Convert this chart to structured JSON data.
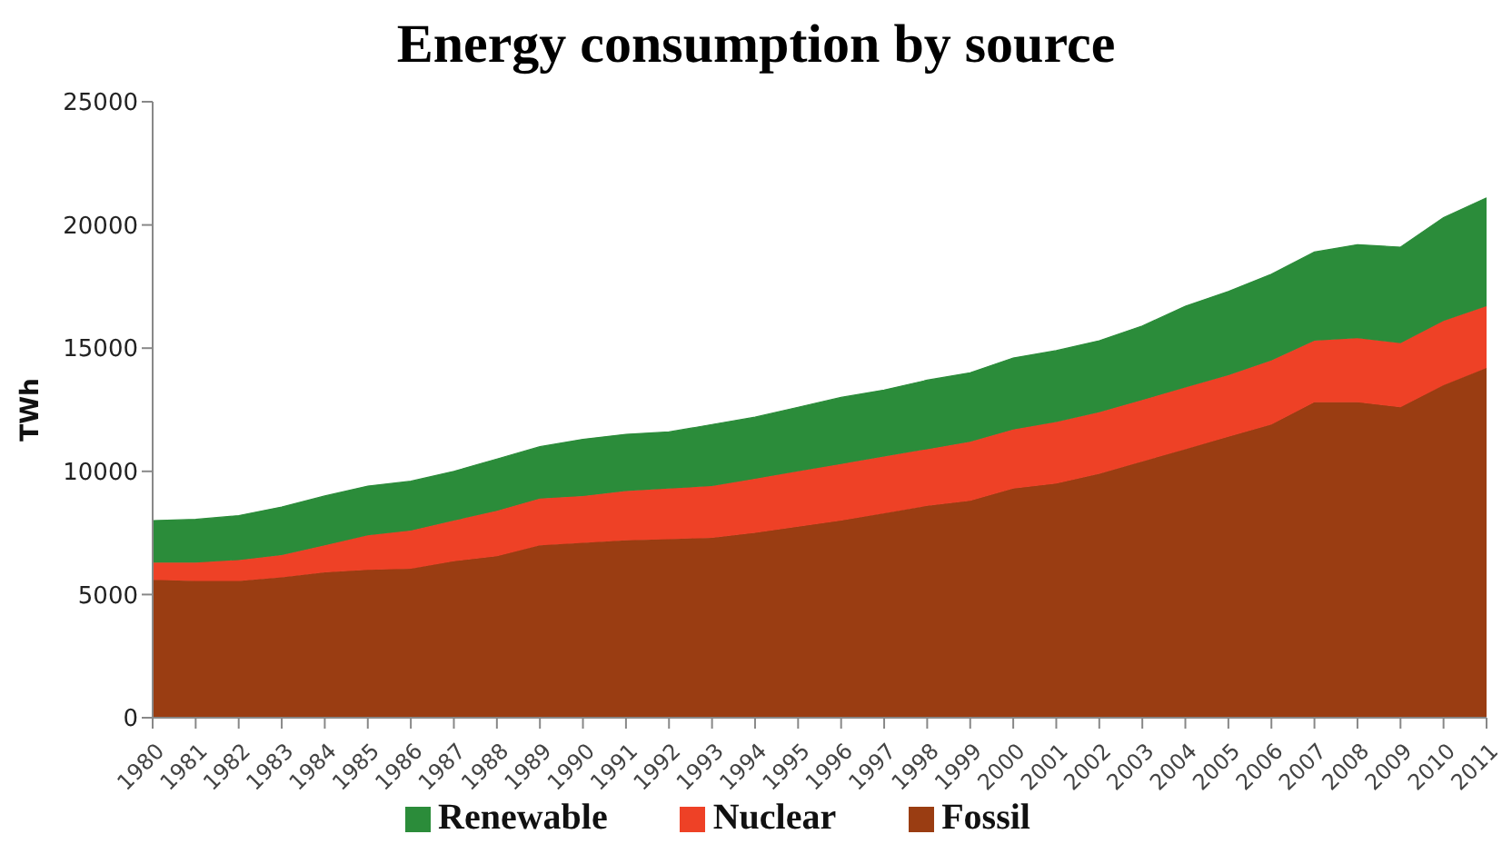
{
  "chart_data": {
    "type": "area",
    "stacked": true,
    "title": "Energy consumption by source",
    "ylabel": "TWh",
    "categories": [
      "1980",
      "1981",
      "1982",
      "1983",
      "1984",
      "1985",
      "1986",
      "1987",
      "1988",
      "1989",
      "1990",
      "1991",
      "1992",
      "1993",
      "1994",
      "1995",
      "1996",
      "1997",
      "1998",
      "1999",
      "2000",
      "2001",
      "2002",
      "2003",
      "2004",
      "2005",
      "2006",
      "2007",
      "2008",
      "2009",
      "2010",
      "2011"
    ],
    "series": [
      {
        "name": "Fossil",
        "color": "#9a3d12",
        "values": [
          5600,
          5550,
          5550,
          5700,
          5900,
          6000,
          6050,
          6350,
          6550,
          7000,
          7100,
          7200,
          7250,
          7300,
          7500,
          7750,
          8000,
          8300,
          8600,
          8800,
          9300,
          9500,
          9900,
          10400,
          10900,
          11400,
          11900,
          12800,
          12800,
          12600,
          13500,
          14200
        ]
      },
      {
        "name": "Nuclear",
        "color": "#ee4126",
        "values": [
          700,
          750,
          850,
          900,
          1100,
          1400,
          1550,
          1650,
          1850,
          1900,
          1900,
          2000,
          2050,
          2100,
          2200,
          2250,
          2300,
          2300,
          2300,
          2400,
          2400,
          2500,
          2500,
          2500,
          2500,
          2500,
          2600,
          2500,
          2600,
          2600,
          2600,
          2500
        ]
      },
      {
        "name": "Renewable",
        "color": "#2b8c3a",
        "values": [
          1700,
          1750,
          1800,
          1950,
          2000,
          2000,
          2000,
          2000,
          2100,
          2100,
          2300,
          2300,
          2300,
          2500,
          2500,
          2600,
          2700,
          2700,
          2800,
          2800,
          2900,
          2900,
          2900,
          3000,
          3300,
          3400,
          3500,
          3600,
          3800,
          3900,
          4200,
          4400
        ]
      }
    ],
    "ylim": [
      0,
      25000
    ],
    "yticks": [
      0,
      5000,
      10000,
      15000,
      20000,
      25000
    ],
    "grid": false,
    "legend": "bottom"
  }
}
